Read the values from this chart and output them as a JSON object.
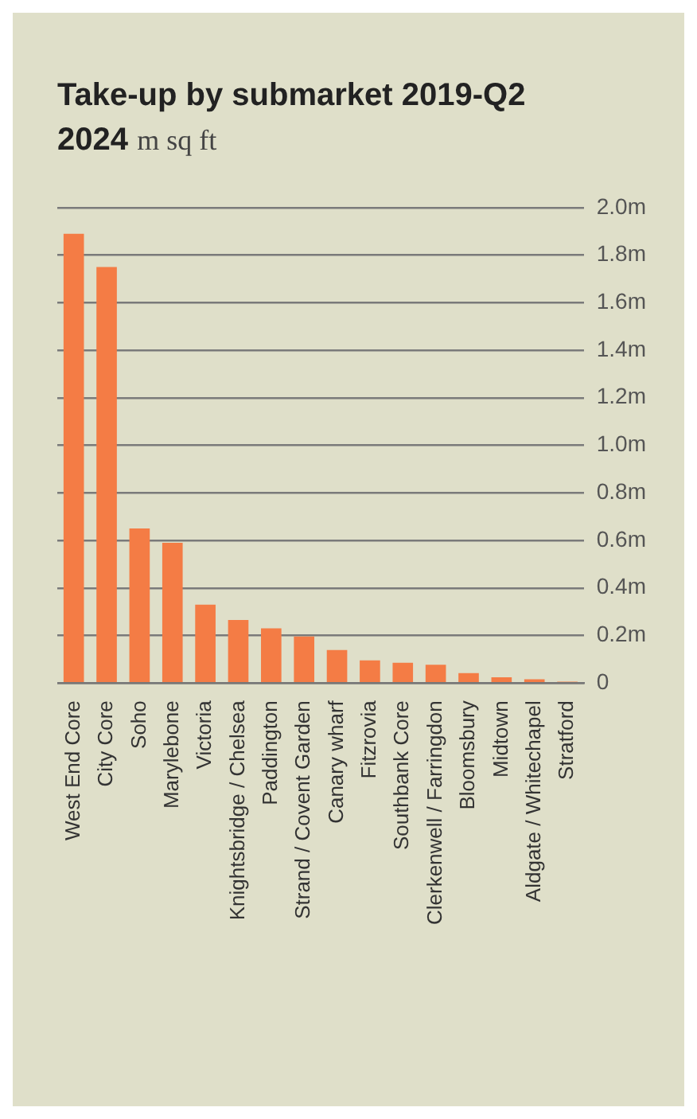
{
  "chart_data": {
    "type": "bar",
    "title": "Take-up by submarket 2019-Q2 2024",
    "subtitle": "m sq ft",
    "categories": [
      "West End Core",
      "City Core",
      "Soho",
      "Marylebone",
      "Victoria",
      "Knightsbridge / Chelsea",
      "Paddington",
      "Strand / Covent Garden",
      "Canary wharf",
      "Fitzrovia",
      "Southbank Core",
      "Clerkenwell / Farringdon",
      "Bloomsbury",
      "Midtown",
      "Aldgate / Whitechapel",
      "Stratford"
    ],
    "values": [
      1.89,
      1.75,
      0.65,
      0.59,
      0.33,
      0.265,
      0.23,
      0.196,
      0.139,
      0.095,
      0.085,
      0.077,
      0.042,
      0.024,
      0.016,
      0.006
    ],
    "color": "#f47c45",
    "ylim": [
      0,
      2.0
    ],
    "yticks": [
      {
        "value": 0,
        "label": "0"
      },
      {
        "value": 0.2,
        "label": "0.2m"
      },
      {
        "value": 0.4,
        "label": "0.4m"
      },
      {
        "value": 0.6,
        "label": "0.6m"
      },
      {
        "value": 0.8,
        "label": "0.8m"
      },
      {
        "value": 1.0,
        "label": "1.0m"
      },
      {
        "value": 1.2,
        "label": "1.2m"
      },
      {
        "value": 1.4,
        "label": "1.4m"
      },
      {
        "value": 1.6,
        "label": "1.6m"
      },
      {
        "value": 1.8,
        "label": "1.8m"
      },
      {
        "value": 2.0,
        "label": "2.0m"
      }
    ],
    "grid": "y",
    "legend": false
  }
}
